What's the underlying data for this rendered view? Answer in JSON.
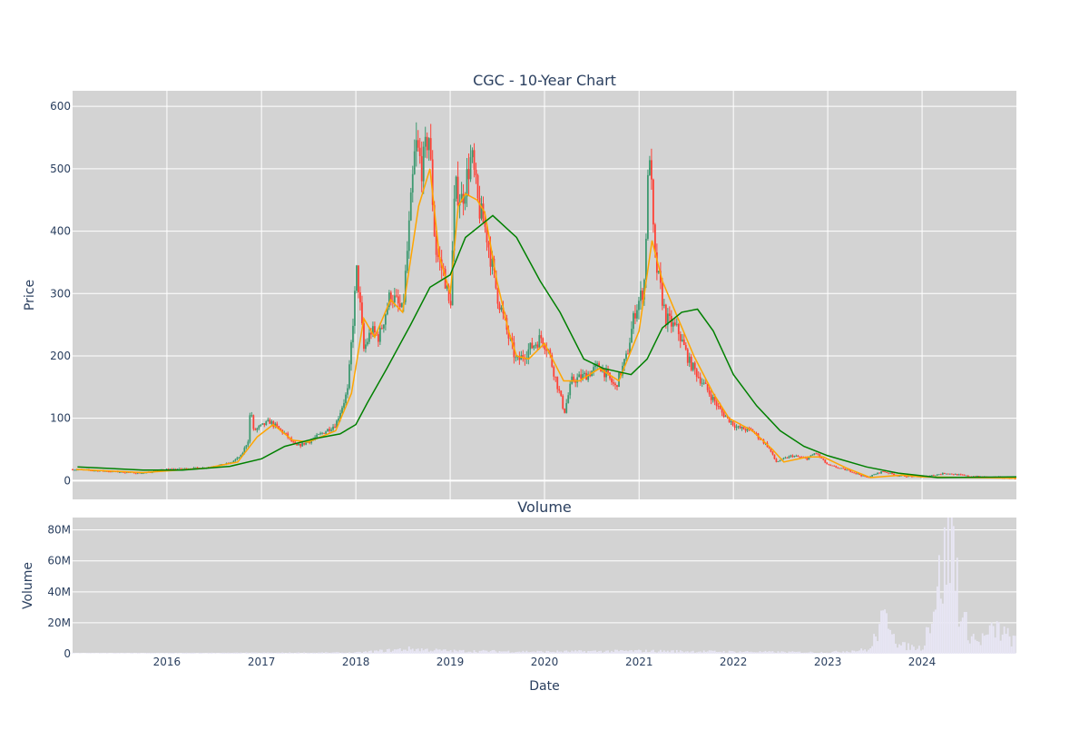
{
  "chart_data": [
    {
      "type": "candlestick",
      "title": "CGC - 10-Year Chart",
      "xlabel": "",
      "ylabel": "Price",
      "ylim": [
        -30,
        625
      ],
      "yticks": [
        0,
        100,
        200,
        300,
        400,
        500,
        600
      ],
      "grid": true,
      "legend": "none",
      "colors": {
        "up": "#3d9970",
        "down": "#ff4136",
        "ma_short": "#ffa500",
        "ma_long": "#008000",
        "background": "#d3d3d3",
        "grid": "#ffffff"
      },
      "price_path": [
        [
          "2015-01-01",
          18
        ],
        [
          "2015-07-01",
          14
        ],
        [
          "2015-10-01",
          12
        ],
        [
          "2016-01-01",
          18
        ],
        [
          "2016-06-01",
          21
        ],
        [
          "2016-09-01",
          28
        ],
        [
          "2016-10-15",
          40
        ],
        [
          "2016-11-10",
          65
        ],
        [
          "2016-11-20",
          120
        ],
        [
          "2016-12-01",
          80
        ],
        [
          "2017-02-01",
          95
        ],
        [
          "2017-04-01",
          75
        ],
        [
          "2017-05-15",
          55
        ],
        [
          "2017-07-01",
          62
        ],
        [
          "2017-08-01",
          70
        ],
        [
          "2017-10-15",
          90
        ],
        [
          "2017-12-01",
          145
        ],
        [
          "2018-01-05",
          340
        ],
        [
          "2018-02-01",
          210
        ],
        [
          "2018-03-01",
          240
        ],
        [
          "2018-04-01",
          230
        ],
        [
          "2018-05-15",
          300
        ],
        [
          "2018-07-01",
          270
        ],
        [
          "2018-08-20",
          540
        ],
        [
          "2018-09-15",
          500
        ],
        [
          "2018-10-10",
          560
        ],
        [
          "2018-11-05",
          370
        ],
        [
          "2018-12-10",
          330
        ],
        [
          "2019-01-01",
          270
        ],
        [
          "2019-01-20",
          470
        ],
        [
          "2019-02-15",
          450
        ],
        [
          "2019-03-25",
          520
        ],
        [
          "2019-04-20",
          440
        ],
        [
          "2019-05-20",
          400
        ],
        [
          "2019-07-01",
          300
        ],
        [
          "2019-08-15",
          230
        ],
        [
          "2019-09-15",
          190
        ],
        [
          "2019-11-01",
          210
        ],
        [
          "2019-12-20",
          230
        ],
        [
          "2020-01-15",
          210
        ],
        [
          "2020-03-18",
          110
        ],
        [
          "2020-04-15",
          160
        ],
        [
          "2020-06-15",
          170
        ],
        [
          "2020-08-01",
          185
        ],
        [
          "2020-10-01",
          150
        ],
        [
          "2020-11-15",
          200
        ],
        [
          "2020-12-15",
          270
        ],
        [
          "2021-01-20",
          310
        ],
        [
          "2021-02-10",
          540
        ],
        [
          "2021-03-01",
          360
        ],
        [
          "2021-04-15",
          260
        ],
        [
          "2021-06-01",
          240
        ],
        [
          "2021-07-15",
          190
        ],
        [
          "2021-09-15",
          150
        ],
        [
          "2021-11-15",
          110
        ],
        [
          "2022-01-15",
          85
        ],
        [
          "2022-03-15",
          80
        ],
        [
          "2022-05-15",
          55
        ],
        [
          "2022-06-15",
          30
        ],
        [
          "2022-08-15",
          40
        ],
        [
          "2022-10-15",
          35
        ],
        [
          "2022-11-15",
          45
        ],
        [
          "2023-01-01",
          25
        ],
        [
          "2023-04-01",
          15
        ],
        [
          "2023-06-01",
          5
        ],
        [
          "2023-08-01",
          15
        ],
        [
          "2023-10-01",
          8
        ],
        [
          "2024-01-01",
          6
        ],
        [
          "2024-04-01",
          12
        ],
        [
          "2024-07-01",
          7
        ],
        [
          "2024-12-31",
          4
        ]
      ],
      "ma_short_path": [
        [
          "2015-01-15",
          18
        ],
        [
          "2015-10-01",
          13
        ],
        [
          "2016-06-01",
          20
        ],
        [
          "2016-10-01",
          30
        ],
        [
          "2016-12-15",
          70
        ],
        [
          "2017-02-15",
          90
        ],
        [
          "2017-05-01",
          65
        ],
        [
          "2017-07-01",
          62
        ],
        [
          "2017-10-15",
          80
        ],
        [
          "2017-12-15",
          140
        ],
        [
          "2018-02-01",
          260
        ],
        [
          "2018-03-15",
          230
        ],
        [
          "2018-05-15",
          290
        ],
        [
          "2018-07-01",
          270
        ],
        [
          "2018-09-01",
          440
        ],
        [
          "2018-10-15",
          500
        ],
        [
          "2018-11-20",
          360
        ],
        [
          "2019-01-01",
          300
        ],
        [
          "2019-02-01",
          440
        ],
        [
          "2019-03-01",
          460
        ],
        [
          "2019-04-15",
          450
        ],
        [
          "2019-05-15",
          430
        ],
        [
          "2019-07-01",
          320
        ],
        [
          "2019-08-15",
          240
        ],
        [
          "2019-09-15",
          200
        ],
        [
          "2019-11-01",
          195
        ],
        [
          "2020-01-01",
          220
        ],
        [
          "2020-03-15",
          160
        ],
        [
          "2020-05-15",
          160
        ],
        [
          "2020-08-01",
          180
        ],
        [
          "2020-10-15",
          160
        ],
        [
          "2021-01-01",
          240
        ],
        [
          "2021-02-20",
          385
        ],
        [
          "2021-04-01",
          320
        ],
        [
          "2021-06-01",
          260
        ],
        [
          "2021-08-01",
          200
        ],
        [
          "2021-10-15",
          140
        ],
        [
          "2021-12-15",
          100
        ],
        [
          "2022-03-15",
          80
        ],
        [
          "2022-06-01",
          50
        ],
        [
          "2022-07-15",
          30
        ],
        [
          "2022-10-15",
          38
        ],
        [
          "2022-12-15",
          38
        ],
        [
          "2023-03-15",
          20
        ],
        [
          "2023-06-15",
          5
        ],
        [
          "2023-10-15",
          9
        ],
        [
          "2024-01-01",
          6
        ],
        [
          "2024-12-31",
          4
        ]
      ],
      "ma_long_path": [
        [
          "2015-01-20",
          22
        ],
        [
          "2015-10-01",
          17
        ],
        [
          "2016-03-01",
          17
        ],
        [
          "2016-09-01",
          23
        ],
        [
          "2017-01-01",
          35
        ],
        [
          "2017-04-01",
          55
        ],
        [
          "2017-08-01",
          68
        ],
        [
          "2017-11-01",
          75
        ],
        [
          "2018-01-01",
          90
        ],
        [
          "2018-02-15",
          125
        ],
        [
          "2018-05-01",
          180
        ],
        [
          "2018-08-01",
          250
        ],
        [
          "2018-10-15",
          310
        ],
        [
          "2019-01-01",
          330
        ],
        [
          "2019-03-01",
          390
        ],
        [
          "2019-06-15",
          425
        ],
        [
          "2019-09-15",
          390
        ],
        [
          "2019-12-15",
          320
        ],
        [
          "2020-03-01",
          270
        ],
        [
          "2020-06-01",
          195
        ],
        [
          "2020-08-15",
          180
        ],
        [
          "2020-12-01",
          170
        ],
        [
          "2021-02-01",
          195
        ],
        [
          "2021-04-01",
          245
        ],
        [
          "2021-06-15",
          270
        ],
        [
          "2021-08-15",
          275
        ],
        [
          "2021-10-15",
          240
        ],
        [
          "2022-01-01",
          170
        ],
        [
          "2022-04-01",
          120
        ],
        [
          "2022-07-01",
          80
        ],
        [
          "2022-10-01",
          55
        ],
        [
          "2023-01-01",
          40
        ],
        [
          "2023-06-01",
          22
        ],
        [
          "2023-10-01",
          12
        ],
        [
          "2024-03-01",
          5
        ],
        [
          "2024-12-31",
          6
        ]
      ]
    },
    {
      "type": "bar",
      "title": "Volume",
      "xlabel": "Date",
      "ylabel": "Volume",
      "xlim": [
        "2015-01-01",
        "2024-12-31"
      ],
      "x_ticks": [
        "2016",
        "2017",
        "2018",
        "2019",
        "2020",
        "2021",
        "2022",
        "2023",
        "2024"
      ],
      "yticks": [
        0,
        20000000,
        40000000,
        60000000,
        80000000
      ],
      "ytick_labels": [
        "0",
        "20M",
        "40M",
        "60M",
        "80M"
      ],
      "ylim": [
        0,
        88000000
      ],
      "colors": {
        "bars": "#e8e6f5"
      },
      "volume_path": [
        [
          "2015-01-01",
          300000
        ],
        [
          "2018-01-01",
          800000
        ],
        [
          "2018-08-01",
          3500000
        ],
        [
          "2019-01-01",
          2000000
        ],
        [
          "2020-01-01",
          1500000
        ],
        [
          "2021-01-01",
          2000000
        ],
        [
          "2022-01-01",
          1500000
        ],
        [
          "2023-01-01",
          1000000
        ],
        [
          "2023-06-15",
          3000000
        ],
        [
          "2023-07-15",
          18000000
        ],
        [
          "2023-09-01",
          28000000
        ],
        [
          "2023-10-01",
          6000000
        ],
        [
          "2024-01-01",
          4000000
        ],
        [
          "2024-04-01",
          68000000
        ],
        [
          "2024-05-01",
          82000000
        ],
        [
          "2024-06-01",
          25000000
        ],
        [
          "2024-08-01",
          8000000
        ],
        [
          "2024-10-15",
          18000000
        ],
        [
          "2024-12-31",
          8000000
        ]
      ]
    }
  ]
}
